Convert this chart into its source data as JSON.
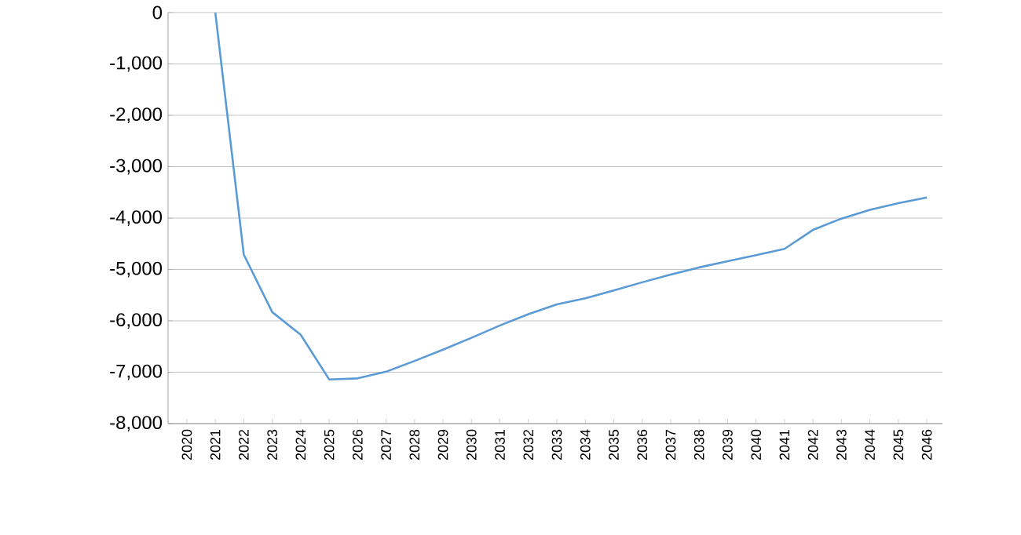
{
  "chart_data": {
    "type": "line",
    "categories": [
      "2020",
      "2021",
      "2022",
      "2023",
      "2024",
      "2025",
      "2026",
      "2027",
      "2028",
      "2029",
      "2030",
      "2031",
      "2032",
      "2033",
      "2034",
      "2035",
      "2036",
      "2037",
      "2038",
      "2039",
      "2040",
      "2041",
      "2042",
      "2043",
      "2044",
      "2045",
      "2046"
    ],
    "values": [
      null,
      0,
      -4710,
      -5830,
      -6270,
      -7140,
      -7120,
      -6990,
      -6780,
      -6560,
      -6330,
      -6090,
      -5870,
      -5680,
      -5560,
      -5410,
      -5250,
      -5100,
      -4960,
      -4840,
      -4720,
      -4600,
      -4230,
      -4010,
      -3840,
      -3710,
      -3600
    ],
    "color": "#5b9bd5",
    "ylim": [
      -8000,
      0
    ],
    "yticks": [
      {
        "value": -8000,
        "label": "-8,000"
      },
      {
        "value": -7000,
        "label": "-7,000"
      },
      {
        "value": -6000,
        "label": "-6,000"
      },
      {
        "value": -5000,
        "label": "-5,000"
      },
      {
        "value": -4000,
        "label": "-4,000"
      },
      {
        "value": -3000,
        "label": "-3,000"
      },
      {
        "value": -2000,
        "label": "-2,000"
      },
      {
        "value": -1000,
        "label": "-1,000"
      },
      0
    ],
    "grid": "y"
  }
}
